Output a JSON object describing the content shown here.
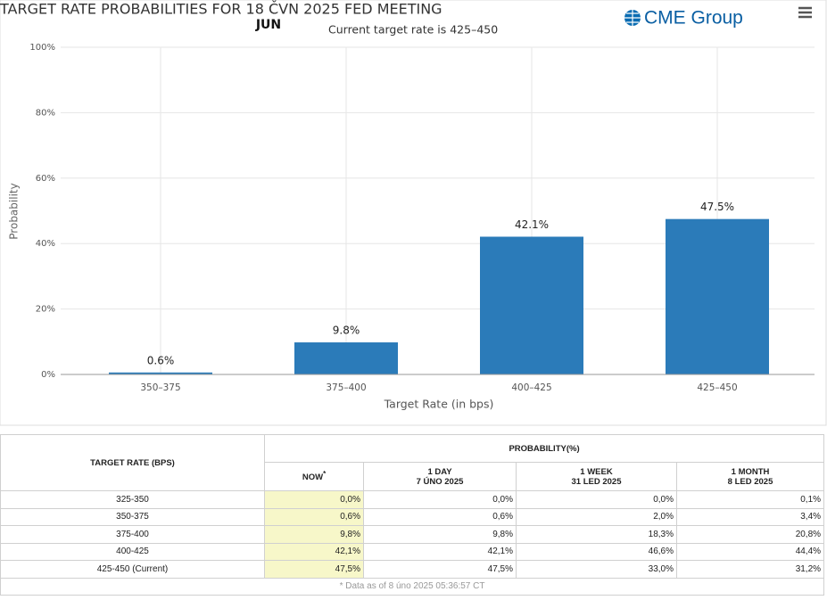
{
  "chart_data": {
    "type": "bar",
    "title": "TARGET RATE PROBABILITIES FOR 18 ČVN 2025 FED MEETING",
    "month": "JUN",
    "subtitle": "Current target rate is 425–450",
    "y_label": "Probability",
    "x_label": "Target Rate (in bps)",
    "categories": [
      "350–375",
      "375–400",
      "400–425",
      "425–450"
    ],
    "values": [
      0.6,
      9.8,
      42.1,
      47.5
    ],
    "value_labels": [
      "0.6%",
      "9.8%",
      "42.1%",
      "47.5%"
    ],
    "color": "#2b7bb9",
    "ylim": [
      0,
      100
    ],
    "yticks": [
      {
        "value": 0,
        "label": "0%"
      },
      {
        "value": 20,
        "label": "20%"
      },
      {
        "value": 40,
        "label": "40%"
      },
      {
        "value": 60,
        "label": "60%"
      },
      {
        "value": 80,
        "label": "80%"
      },
      {
        "value": 100,
        "label": "100%"
      }
    ],
    "grid": true
  },
  "logo": "CME Group",
  "table": {
    "row_header": "TARGET RATE (BPS)",
    "group_header": "PROBABILITY(%)",
    "columns": [
      {
        "label": "NOW",
        "note": "*"
      },
      {
        "label": "1 DAY",
        "date": "7 ÚNO 2025"
      },
      {
        "label": "1 WEEK",
        "date": "31 LED 2025"
      },
      {
        "label": "1 MONTH",
        "date": "8 LED 2025"
      }
    ],
    "rows": [
      [
        "325-350",
        "0,0%",
        "0,0%",
        "0,0%",
        "0,1%"
      ],
      [
        "350-375",
        "0,6%",
        "0,6%",
        "2,0%",
        "3,4%"
      ],
      [
        "375-400",
        "9,8%",
        "9,8%",
        "18,3%",
        "20,8%"
      ],
      [
        "400-425",
        "42,1%",
        "42,1%",
        "46,6%",
        "44,4%"
      ],
      [
        "425-450 (Current)",
        "47,5%",
        "47,5%",
        "33,0%",
        "31,2%"
      ]
    ],
    "footnote": "* Data as of 8 úno 2025 05:36:57 CT"
  }
}
